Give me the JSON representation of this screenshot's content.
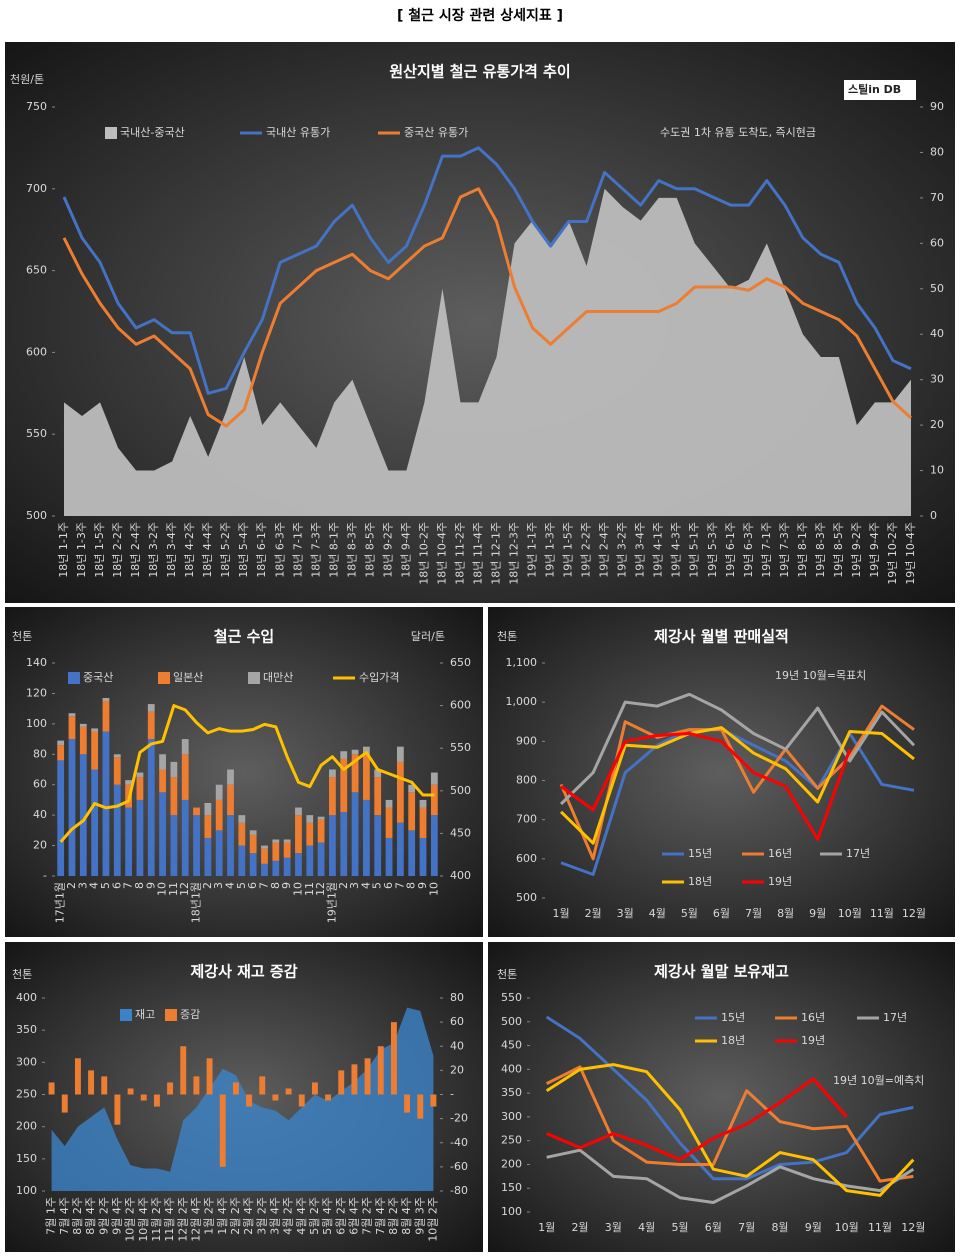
{
  "page_title": "[ 철근 시장 관련 상세지표 ]",
  "chart_data": [
    {
      "type": "combo",
      "title": "원산지별 철근 유통가격 추이",
      "y_label": "천원/톤",
      "annotation": "수도권 1차 유통 도착도, 즉시현금",
      "logo": "스틸in DB",
      "categories": [
        "18년 1-1주",
        "18년 1-3주",
        "18년 1-5주",
        "18년 2-2주",
        "18년 2-4주",
        "18년 3-2주",
        "18년 3-4주",
        "18년 4-2주",
        "18년 4-4주",
        "18년 5-2주",
        "18년 5-4주",
        "18년 6-1주",
        "18년 6-3주",
        "18년 7-1주",
        "18년 7-3주",
        "18년 8-1주",
        "18년 8-3주",
        "18년 8-5주",
        "18년 9-2주",
        "18년 9-4주",
        "18년 10-2주",
        "18년 10-4주",
        "18년 11-2주",
        "18년 11-4주",
        "18년 12-1주",
        "18년 12-3주",
        "19년 1-1주",
        "19년 1-3주",
        "19년 1-5주",
        "19년 2-2주",
        "19년 2-4주",
        "19년 3-2주",
        "19년 3-4주",
        "19년 4-1주",
        "19년 4-3주",
        "19년 5-1주",
        "19년 5-3주",
        "19년 6-1주",
        "19년 6-3주",
        "19년 7-1주",
        "19년 7-3주",
        "19년 8-1주",
        "19년 8-3주",
        "19년 8-5주",
        "19년 9-2주",
        "19년 9-4주",
        "19년 10-2주",
        "19년 10-4주"
      ],
      "series": [
        {
          "name": "국내산-중국산",
          "type": "area",
          "axis": "y2",
          "color": "#bdbdbd",
          "values": [
            25,
            22,
            25,
            15,
            10,
            10,
            12,
            22,
            13,
            23,
            35,
            20,
            25,
            20,
            15,
            25,
            30,
            20,
            10,
            10,
            25,
            50,
            25,
            25,
            35,
            60,
            65,
            60,
            65,
            55,
            72,
            68,
            65,
            70,
            70,
            60,
            55,
            50,
            52,
            60,
            50,
            40,
            35,
            35,
            20,
            25,
            25,
            30
          ]
        },
        {
          "name": "국내산 유통가",
          "type": "line",
          "color": "#4472c4",
          "values": [
            695,
            670,
            655,
            630,
            615,
            620,
            612,
            612,
            575,
            578,
            600,
            620,
            655,
            660,
            665,
            680,
            690,
            670,
            655,
            665,
            690,
            720,
            720,
            725,
            715,
            700,
            680,
            665,
            680,
            680,
            710,
            700,
            690,
            705,
            700,
            700,
            695,
            690,
            690,
            705,
            690,
            670,
            660,
            655,
            630,
            615,
            595,
            590
          ]
        },
        {
          "name": "중국산 유통가",
          "type": "line",
          "color": "#ed7d31",
          "values": [
            670,
            648,
            630,
            615,
            605,
            610,
            600,
            590,
            562,
            555,
            565,
            600,
            630,
            640,
            650,
            655,
            660,
            650,
            645,
            655,
            665,
            670,
            695,
            700,
            680,
            640,
            615,
            605,
            615,
            625,
            625,
            625,
            625,
            625,
            630,
            640,
            640,
            640,
            638,
            645,
            640,
            630,
            625,
            620,
            610,
            590,
            570,
            560
          ]
        }
      ],
      "ylim": [
        500,
        750
      ],
      "yticks": [
        500,
        550,
        600,
        650,
        700,
        750
      ],
      "y2lim": [
        0,
        90
      ],
      "y2ticks": [
        0,
        10,
        20,
        30,
        40,
        50,
        60,
        70,
        80,
        90
      ]
    },
    {
      "type": "combo",
      "title": "철근 수입",
      "y_label": "천톤",
      "y2_label": "달러/톤",
      "stacked": true,
      "categories": [
        "17년1월",
        "2",
        "3",
        "4",
        "5",
        "6",
        "7",
        "8",
        "9",
        "10",
        "11",
        "12",
        "18년1월",
        "2",
        "3",
        "4",
        "5",
        "6",
        "7",
        "8",
        "9",
        "10",
        "11",
        "12",
        "19년1월",
        "2",
        "3",
        "4",
        "5",
        "6",
        "7",
        "8",
        "9",
        "10"
      ],
      "series": [
        {
          "name": "중국산",
          "type": "bar",
          "color": "#4472c4",
          "values": [
            76,
            90,
            80,
            70,
            95,
            60,
            45,
            50,
            90,
            55,
            40,
            50,
            40,
            25,
            30,
            40,
            20,
            15,
            8,
            10,
            12,
            15,
            20,
            22,
            40,
            42,
            55,
            50,
            40,
            25,
            35,
            30,
            25,
            40
          ]
        },
        {
          "name": "일본산",
          "type": "bar",
          "color": "#ed7d31",
          "values": [
            10,
            15,
            18,
            25,
            20,
            18,
            15,
            15,
            18,
            15,
            25,
            30,
            5,
            15,
            20,
            20,
            15,
            12,
            10,
            12,
            10,
            25,
            15,
            15,
            25,
            35,
            25,
            30,
            25,
            20,
            40,
            25,
            20,
            20
          ]
        },
        {
          "name": "대만산",
          "type": "bar",
          "color": "#a5a5a5",
          "values": [
            3,
            2,
            2,
            2,
            2,
            2,
            3,
            3,
            5,
            10,
            10,
            10,
            0,
            8,
            10,
            10,
            5,
            3,
            2,
            2,
            2,
            5,
            5,
            2,
            5,
            5,
            3,
            5,
            5,
            5,
            10,
            5,
            5,
            8
          ]
        },
        {
          "name": "수입가격",
          "type": "line",
          "axis": "y2",
          "color": "#ffc000",
          "values": [
            440,
            455,
            465,
            485,
            480,
            482,
            488,
            545,
            555,
            558,
            600,
            595,
            580,
            568,
            573,
            570,
            570,
            572,
            578,
            575,
            540,
            510,
            505,
            530,
            540,
            525,
            535,
            545,
            525,
            520,
            515,
            510,
            495,
            495
          ]
        }
      ],
      "ylim": [
        0,
        140
      ],
      "yticks": [
        {
          "value": 0,
          "label": "-"
        },
        20,
        40,
        60,
        80,
        100,
        120,
        140
      ],
      "y2lim": [
        400,
        650
      ],
      "y2ticks": [
        400,
        450,
        500,
        550,
        600,
        650
      ]
    },
    {
      "type": "line",
      "title": "제강사 월별 판매실적",
      "y_label": "천톤",
      "annotation": "19년 10월=목표치",
      "categories": [
        "1월",
        "2월",
        "3월",
        "4월",
        "5월",
        "6월",
        "7월",
        "8월",
        "9월",
        "10월",
        "11월",
        "12월"
      ],
      "series": [
        {
          "name": "15년",
          "type": "line",
          "color": "#4472c4",
          "values": [
            590,
            560,
            820,
            890,
            930,
            930,
            890,
            850,
            780,
            920,
            790,
            775
          ]
        },
        {
          "name": "16년",
          "type": "line",
          "color": "#ed7d31",
          "values": [
            790,
            600,
            950,
            910,
            930,
            930,
            770,
            880,
            780,
            860,
            990,
            930
          ]
        },
        {
          "name": "17년",
          "type": "line",
          "color": "#a5a5a5",
          "values": [
            740,
            820,
            1000,
            990,
            1020,
            980,
            920,
            880,
            985,
            850,
            975,
            890
          ]
        },
        {
          "name": "18년",
          "type": "line",
          "color": "#ffc000",
          "values": [
            720,
            640,
            890,
            885,
            920,
            935,
            870,
            830,
            745,
            925,
            920,
            855
          ]
        },
        {
          "name": "19년",
          "type": "line",
          "color": "#ff0000",
          "values": [
            785,
            725,
            900,
            915,
            920,
            900,
            820,
            785,
            650,
            880,
            null,
            null
          ]
        }
      ],
      "ylim": [
        500,
        1100
      ],
      "yticks": [
        500,
        600,
        700,
        800,
        900,
        {
          "value": 1000,
          "label": "1,000"
        },
        {
          "value": 1100,
          "label": "1,100"
        }
      ]
    },
    {
      "type": "combo",
      "title": "제강사 재고 증감",
      "y_label": "천톤",
      "categories": [
        "7월 1주",
        "7월 4주",
        "8월 2주",
        "8월 4주",
        "9월 2주",
        "9월 4주",
        "10월 2주",
        "10월 4주",
        "11월 2주",
        "11월 4주",
        "12월 2주",
        "12월 4주",
        "1월 2주",
        "1월 4주",
        "2월 2주",
        "2월 4주",
        "3월 2주",
        "3월 4주",
        "4월 2주",
        "4월 4주",
        "5월 2주",
        "5월 4주",
        "6월 2주",
        "6월 4주",
        "7월 2주",
        "7월 4주",
        "8월 2주",
        "8월 4주",
        "9월 3주",
        "10월 2주"
      ],
      "series": [
        {
          "name": "재고",
          "type": "area",
          "color": "#3c82c8",
          "values": [
            195,
            170,
            200,
            215,
            230,
            180,
            140,
            135,
            135,
            130,
            210,
            230,
            260,
            290,
            280,
            240,
            230,
            225,
            210,
            230,
            250,
            240,
            255,
            270,
            290,
            320,
            330,
            385,
            380,
            310
          ]
        },
        {
          "name": "증감",
          "type": "bar",
          "axis": "y2",
          "color": "#ed7d31",
          "values": [
            10,
            -15,
            30,
            20,
            15,
            -25,
            5,
            -5,
            -10,
            10,
            40,
            15,
            30,
            -60,
            10,
            -10,
            15,
            -5,
            5,
            -10,
            10,
            -5,
            20,
            25,
            30,
            40,
            60,
            -15,
            -20,
            -10
          ]
        }
      ],
      "ylim": [
        100,
        400
      ],
      "yticks": [
        100,
        150,
        200,
        250,
        300,
        350,
        400
      ],
      "y2lim": [
        -80,
        80
      ],
      "y2ticks": [
        -80,
        -60,
        -40,
        -20,
        {
          "value": 0,
          "label": "-"
        },
        20,
        40,
        60,
        80
      ]
    },
    {
      "type": "line",
      "title": "제강사 월말 보유재고",
      "y_label": "천톤",
      "annotation": "19년 10월=예측치",
      "categories": [
        "1월",
        "2월",
        "3월",
        "4월",
        "5월",
        "6월",
        "7월",
        "8월",
        "9월",
        "10월",
        "11월",
        "12월"
      ],
      "series": [
        {
          "name": "15년",
          "type": "line",
          "color": "#4472c4",
          "values": [
            510,
            465,
            400,
            335,
            245,
            170,
            170,
            200,
            205,
            225,
            305,
            320
          ]
        },
        {
          "name": "16년",
          "type": "line",
          "color": "#ed7d31",
          "values": [
            370,
            405,
            250,
            205,
            200,
            200,
            355,
            290,
            275,
            280,
            165,
            175
          ]
        },
        {
          "name": "17년",
          "type": "line",
          "color": "#a5a5a5",
          "values": [
            215,
            230,
            175,
            170,
            130,
            120,
            155,
            195,
            170,
            155,
            145,
            190
          ]
        },
        {
          "name": "18년",
          "type": "line",
          "color": "#ffc000",
          "values": [
            355,
            400,
            410,
            395,
            315,
            190,
            175,
            225,
            210,
            145,
            135,
            210
          ]
        },
        {
          "name": "19년",
          "type": "line",
          "color": "#ff0000",
          "values": [
            265,
            235,
            265,
            240,
            210,
            255,
            285,
            330,
            380,
            300,
            null,
            null
          ]
        }
      ],
      "ylim": [
        100,
        550
      ],
      "yticks": [
        100,
        150,
        200,
        250,
        300,
        350,
        400,
        450,
        500,
        550
      ]
    }
  ]
}
